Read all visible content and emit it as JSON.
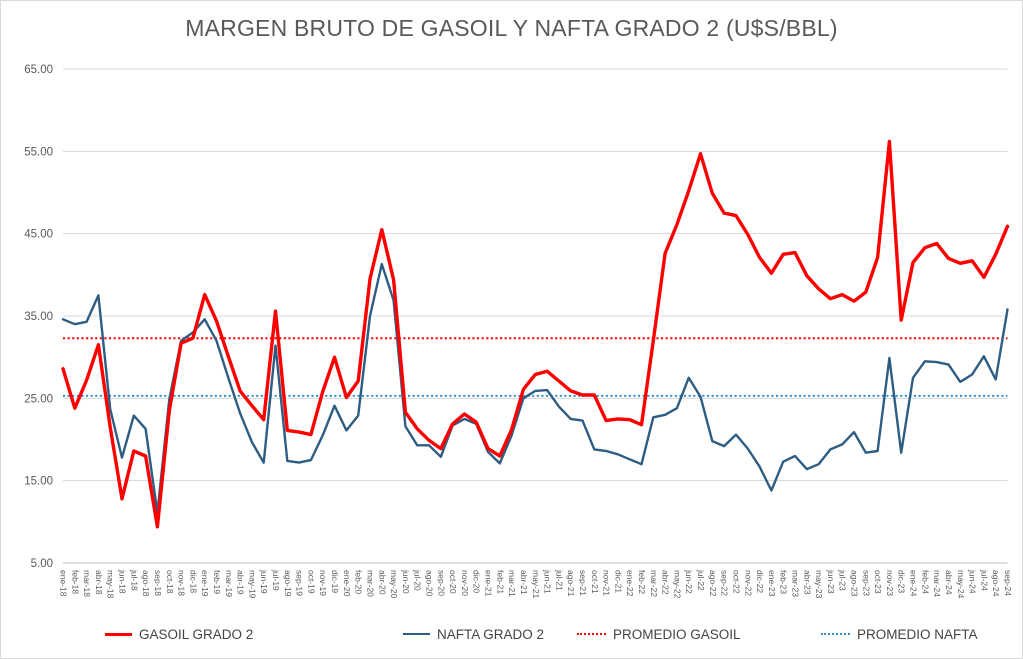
{
  "chart_data": {
    "type": "line",
    "title": "MARGEN BRUTO DE GASOIL Y NAFTA GRADO 2 (U$S/BBL)",
    "xlabel": "",
    "ylabel": "",
    "grid": true,
    "legend_position": "bottom",
    "categories": [
      "ene-18",
      "feb-18",
      "mar-18",
      "abr-18",
      "may-18",
      "jun-18",
      "jul-18",
      "ago-18",
      "sep-18",
      "oct-18",
      "nov-18",
      "dic-18",
      "ene-19",
      "feb-19",
      "mar-19",
      "abr-19",
      "may-19",
      "jun-19",
      "jul-19",
      "ago-19",
      "sep-19",
      "oct-19",
      "nov-19",
      "dic-19",
      "ene-20",
      "feb-20",
      "mar-20",
      "abr-20",
      "may-20",
      "jun-20",
      "jul-20",
      "ago-20",
      "sep-20",
      "oct-20",
      "nov-20",
      "dic-20",
      "ene-21",
      "feb-21",
      "mar-21",
      "abr-21",
      "may-21",
      "jun-21",
      "jul-21",
      "ago-21",
      "sep-21",
      "oct-21",
      "nov-21",
      "dic-21",
      "ene-22",
      "feb-22",
      "mar-22",
      "abr-22",
      "may-22",
      "jun-22",
      "jul-22",
      "ago-22",
      "sep-22",
      "oct-22",
      "nov-22",
      "dic-22",
      "ene-23",
      "feb-23",
      "mar-23",
      "abr-23",
      "may-23",
      "jun-23",
      "jul-23",
      "ago-23",
      "sep-23",
      "oct-23",
      "nov-23",
      "dic-23",
      "ene-24",
      "feb-24",
      "mar-24",
      "abr-24",
      "may-24",
      "jun-24",
      "jul-24",
      "ago-24",
      "sep-24"
    ],
    "y_axis": {
      "min": 5,
      "max": 65,
      "ticks": [
        "65.00",
        "55.00",
        "45.00",
        "35.00",
        "25.00",
        "15.00",
        "5.00"
      ]
    },
    "series": [
      {
        "name": "GASOIL GRADO 2",
        "data_name": "gasoil",
        "style": "solid",
        "color": "#FF0000",
        "width": 3.4,
        "values": [
          28.6,
          23.8,
          27.2,
          31.5,
          21.5,
          12.8,
          18.6,
          18.0,
          9.4,
          23.5,
          31.7,
          32.3,
          37.6,
          34.4,
          30.1,
          25.9,
          24.1,
          22.4,
          35.6,
          21.1,
          20.9,
          20.6,
          25.8,
          30.0,
          25.1,
          27.1,
          39.5,
          45.5,
          39.4,
          23.3,
          21.3,
          19.9,
          18.9,
          21.9,
          23.1,
          22.1,
          18.9,
          18.0,
          21.2,
          26.1,
          27.9,
          28.3,
          27.1,
          25.9,
          25.4,
          25.4,
          22.3,
          22.5,
          22.4,
          21.8,
          32.0,
          42.6,
          46.1,
          50.2,
          54.7,
          49.9,
          47.5,
          47.2,
          44.9,
          42.1,
          40.2,
          42.5,
          42.7,
          39.9,
          38.3,
          37.1,
          37.6,
          36.8,
          37.9,
          42.1,
          56.2,
          34.5,
          41.5,
          43.3,
          43.8,
          42.0,
          41.4,
          41.7,
          39.7,
          42.5,
          45.9
        ]
      },
      {
        "name": "NAFTA GRADO 2",
        "data_name": "nafta",
        "style": "solid",
        "color": "#2E5D84",
        "width": 2.4,
        "values": [
          34.6,
          34.0,
          34.3,
          37.5,
          23.7,
          17.8,
          22.9,
          21.3,
          11.1,
          24.9,
          32.0,
          33.0,
          34.6,
          32.0,
          27.5,
          23.2,
          19.7,
          17.2,
          31.4,
          17.4,
          17.2,
          17.5,
          20.5,
          24.1,
          21.1,
          22.9,
          35.0,
          41.3,
          36.9,
          21.6,
          19.3,
          19.3,
          17.9,
          21.7,
          22.5,
          21.9,
          18.5,
          17.1,
          20.5,
          25.0,
          25.9,
          26.0,
          24.0,
          22.5,
          22.3,
          18.8,
          18.6,
          18.2,
          17.6,
          17.0,
          22.7,
          23.0,
          23.8,
          27.5,
          25.2,
          19.8,
          19.2,
          20.6,
          18.9,
          16.7,
          13.8,
          17.3,
          18.0,
          16.4,
          17.0,
          18.8,
          19.4,
          20.9,
          18.4,
          18.6,
          29.9,
          18.4,
          27.5,
          29.5,
          29.4,
          29.1,
          27.0,
          27.9,
          30.1,
          27.3,
          35.8
        ]
      },
      {
        "name": "PROMEDIO GASOIL",
        "data_name": "promedio-gasoil",
        "style": "dotted",
        "color": "#FF0000",
        "width": 2,
        "value": 32.3
      },
      {
        "name": "PROMEDIO NAFTA",
        "data_name": "promedio-nafta",
        "style": "dotted",
        "color": "#338FD3",
        "width": 2,
        "value": 25.3
      }
    ],
    "axis_colors": {
      "gridline": "#D9D9D9",
      "axis_line": "#BFBFBF",
      "tick_label": "#595959",
      "title": "#595959"
    }
  }
}
